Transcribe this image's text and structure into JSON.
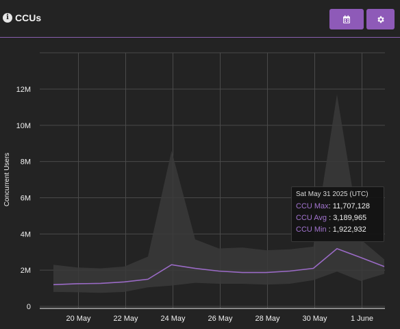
{
  "header": {
    "title": "CCUs",
    "info_icon": "info-circle-icon",
    "calendar_icon": "calendar-icon",
    "settings_icon": "gear-icon",
    "accent": "#8e5ab8"
  },
  "chart_data": {
    "type": "area",
    "title": "",
    "xlabel": "",
    "ylabel": "Concurrent Users",
    "x_tick_labels": [
      "20 May",
      "22 May",
      "24 May",
      "26 May",
      "28 May",
      "30 May",
      "1 June"
    ],
    "y_tick_labels": [
      "0",
      "2M",
      "4M",
      "6M",
      "8M",
      "10M",
      "12M"
    ],
    "y_ticks": [
      0,
      2000000,
      4000000,
      6000000,
      8000000,
      10000000,
      12000000
    ],
    "ylim": [
      0,
      13600000
    ],
    "x": [
      "May 19",
      "May 20",
      "May 21",
      "May 22",
      "May 23",
      "May 24",
      "May 25",
      "May 26",
      "May 27",
      "May 28",
      "May 29",
      "May 30",
      "May 31",
      "Jun 1",
      "Jun 2"
    ],
    "series": [
      {
        "name": "CCU Max",
        "values": [
          2300000,
          2150000,
          2100000,
          2200000,
          2750000,
          8600000,
          3700000,
          3200000,
          3250000,
          3100000,
          3150000,
          3300000,
          11707128,
          3700000,
          2600000
        ],
        "color": "#3a3a3a"
      },
      {
        "name": "CCU Avg",
        "values": [
          1200000,
          1250000,
          1270000,
          1350000,
          1500000,
          2300000,
          2100000,
          1950000,
          1870000,
          1870000,
          1950000,
          2100000,
          3189965,
          2700000,
          2200000
        ],
        "color": "#9b6bc7"
      },
      {
        "name": "CCU Min",
        "values": [
          800000,
          780000,
          750000,
          800000,
          1050000,
          1150000,
          1300000,
          1250000,
          1250000,
          1200000,
          1250000,
          1450000,
          1922932,
          1400000,
          1800000
        ],
        "color": "#3a3a3a"
      }
    ],
    "grid": true,
    "legend": "none",
    "tooltip": {
      "title": "Sat May 31 2025 (UTC)",
      "rows": [
        {
          "label": "CCU Max",
          "value": "11,707,128"
        },
        {
          "label": "CCU Avg",
          "value": "3,189,965"
        },
        {
          "label": "CCU Min",
          "value": "1,922,932"
        }
      ]
    }
  }
}
